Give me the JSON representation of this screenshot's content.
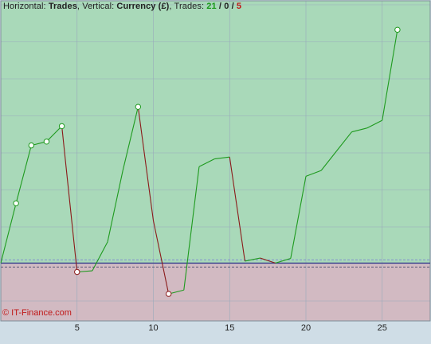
{
  "header": {
    "horizontal_label": "Horizontal:",
    "horizontal_value": "Trades",
    "vertical_label": "Vertical:",
    "vertical_value": "Currency (£)",
    "trades_label": "Trades:",
    "wins": "21",
    "sep1": "/",
    "breakeven": "0",
    "sep2": "/",
    "losses": "5"
  },
  "watermark": "© IT-Finance.com",
  "colors": {
    "profit_zone": "#a9d9b9",
    "loss_zone": "#d2bac2",
    "up_line": "#1e9a1e",
    "down_line": "#8b1a1a",
    "zero_line": "#3a3a8a",
    "grid": "#8fb79c",
    "background": "#cfdde6"
  },
  "chart_data": {
    "type": "line",
    "xlabel": "",
    "ylabel": "",
    "x_ticks": [
      5,
      10,
      15,
      20,
      25
    ],
    "xlim": [
      0,
      28
    ],
    "ylim": [
      -15,
      68
    ],
    "grid": true,
    "points": [
      {
        "x": 0,
        "y": 0,
        "dir": "up"
      },
      {
        "x": 1,
        "y": 15.5,
        "dir": "up",
        "marker": true
      },
      {
        "x": 2,
        "y": 30.5,
        "dir": "up",
        "marker": true
      },
      {
        "x": 3,
        "y": 31.5,
        "dir": "up",
        "marker": true
      },
      {
        "x": 4,
        "y": 35.5,
        "dir": "up",
        "marker": true
      },
      {
        "x": 5,
        "y": -2.3,
        "dir": "down",
        "marker": true
      },
      {
        "x": 6,
        "y": -2.0,
        "dir": "up"
      },
      {
        "x": 7,
        "y": 5.5,
        "dir": "up"
      },
      {
        "x": 8,
        "y": 24.0,
        "dir": "up"
      },
      {
        "x": 9,
        "y": 40.5,
        "dir": "up",
        "marker": true
      },
      {
        "x": 10,
        "y": 11.0,
        "dir": "down"
      },
      {
        "x": 11,
        "y": -8.0,
        "dir": "down",
        "marker": true
      },
      {
        "x": 12,
        "y": -7.0,
        "dir": "up"
      },
      {
        "x": 13,
        "y": 25.0,
        "dir": "up"
      },
      {
        "x": 14,
        "y": 27.0,
        "dir": "up"
      },
      {
        "x": 15,
        "y": 27.5,
        "dir": "up"
      },
      {
        "x": 16,
        "y": 0.5,
        "dir": "down"
      },
      {
        "x": 17,
        "y": 1.3,
        "dir": "up"
      },
      {
        "x": 18,
        "y": 0,
        "dir": "down"
      },
      {
        "x": 19,
        "y": 1.2,
        "dir": "up"
      },
      {
        "x": 20,
        "y": 22.5,
        "dir": "up"
      },
      {
        "x": 21,
        "y": 24.0,
        "dir": "up"
      },
      {
        "x": 22,
        "y": 29.0,
        "dir": "up"
      },
      {
        "x": 23,
        "y": 34.0,
        "dir": "up"
      },
      {
        "x": 24,
        "y": 35.0,
        "dir": "up"
      },
      {
        "x": 25,
        "y": 37.0,
        "dir": "up"
      },
      {
        "x": 26,
        "y": 60.5,
        "dir": "up",
        "marker": true
      }
    ]
  }
}
